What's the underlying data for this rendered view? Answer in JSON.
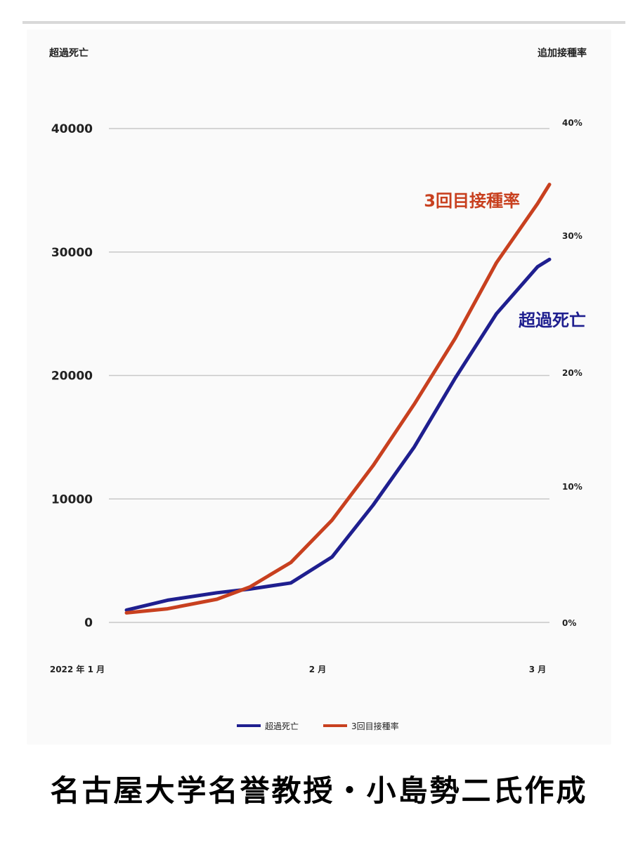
{
  "caption": "名古屋大学名誉教授・小島勢二氏作成",
  "colors": {
    "excess_deaths": "#1f1f8f",
    "booster_rate": "#c8401f",
    "grid": "#c8c8c8",
    "text": "#222222"
  },
  "chart_data": {
    "type": "line",
    "left_axis_label": "超過死亡",
    "right_axis_label": "追加接種率",
    "left_ticks": [
      "0",
      "10000",
      "20000",
      "30000",
      "40000"
    ],
    "right_ticks": [
      "0%",
      "10%",
      "20%",
      "30%",
      "40%"
    ],
    "ylim_left": [
      0,
      40000
    ],
    "ylim_right": [
      0,
      0.4
    ],
    "x_tick_labels": [
      "2022 年 1 月",
      "2 月",
      "3 月"
    ],
    "series": [
      {
        "name": "超過死亡",
        "axis": "left",
        "annotation": "超過死亡",
        "x": [
          0.0,
          0.1,
          0.22,
          0.3,
          0.4,
          0.5,
          0.6,
          0.7,
          0.8,
          0.9,
          1.0,
          1.04
        ],
        "values": [
          1000,
          1800,
          2400,
          2700,
          3200,
          5300,
          9500,
          14200,
          19800,
          25000,
          28800,
          29400
        ]
      },
      {
        "name": "3回目接種率",
        "axis": "right",
        "annotation": "3回目接種率",
        "x": [
          0.0,
          0.1,
          0.22,
          0.3,
          0.4,
          0.5,
          0.6,
          0.7,
          0.8,
          0.9,
          1.0,
          1.04
        ],
        "values": [
          0.007,
          0.01,
          0.017,
          0.026,
          0.044,
          0.075,
          0.118,
          0.172,
          0.225,
          0.28,
          0.328,
          0.345
        ]
      }
    ],
    "legend": [
      "超過死亡",
      "3回目接種率"
    ],
    "legend_position": "bottom-center",
    "grid": true
  }
}
